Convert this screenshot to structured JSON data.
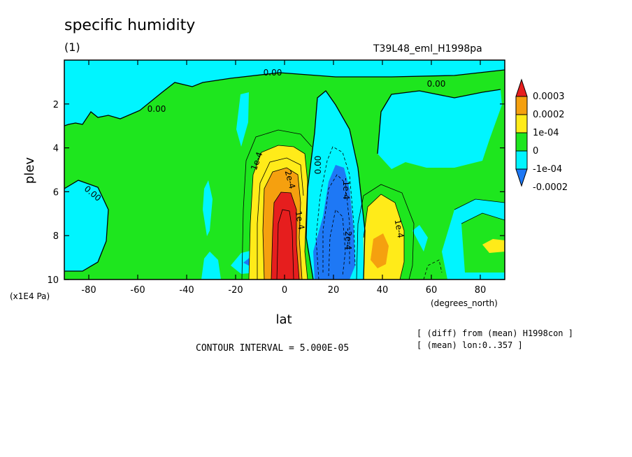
{
  "header": {
    "title": "specific humidity",
    "subtitle": "(1)",
    "run_name": "T39L48_eml_H1998pa"
  },
  "notes": {
    "diff_from": "[ (diff) from (mean) H1998con ]",
    "mean_over": "[ (mean) lon:0..357 ]",
    "contour_interval": "CONTOUR INTERVAL = 5.000E-05"
  },
  "colors": {
    "red": "#e61e1e",
    "orange": "#f5a00f",
    "yellow": "#ffeb19",
    "green": "#1ee61e",
    "cyan": "#00f5ff",
    "blue": "#1e78f5"
  },
  "chart_data": {
    "type": "contour",
    "xlabel": "lat",
    "xunit": "(degrees_north)",
    "ylabel": "plev",
    "yunit": "(x1E4 Pa)",
    "xlim": [
      -90,
      90
    ],
    "ylim": [
      10,
      0
    ],
    "x_ticks": [
      "-80",
      "-60",
      "-40",
      "-20",
      "0",
      "20",
      "40",
      "60",
      "80"
    ],
    "y_ticks": [
      "2",
      "4",
      "6",
      "8",
      "10"
    ],
    "legend": {
      "placement": "right",
      "levels": [
        "0.0003",
        "0.0002",
        "1e-04",
        "0",
        "-1e-04",
        "-0.0002"
      ]
    },
    "contour_labels": [
      "0.00",
      "0.00",
      "0.00",
      "0.00",
      "1e-4",
      "2e-4",
      "1e-4",
      "1e-4",
      "-1e-4",
      "-2e-4",
      "0.00"
    ],
    "extrema": [
      {
        "lat": 0,
        "plev": 9.5,
        "sign": "positive",
        "level": "> 0.0003"
      },
      {
        "lat": 22,
        "plev": 8.5,
        "sign": "negative",
        "level": "< -0.0002"
      },
      {
        "lat": 40,
        "plev": 8.5,
        "sign": "positive",
        "level": "0.0002"
      }
    ]
  }
}
